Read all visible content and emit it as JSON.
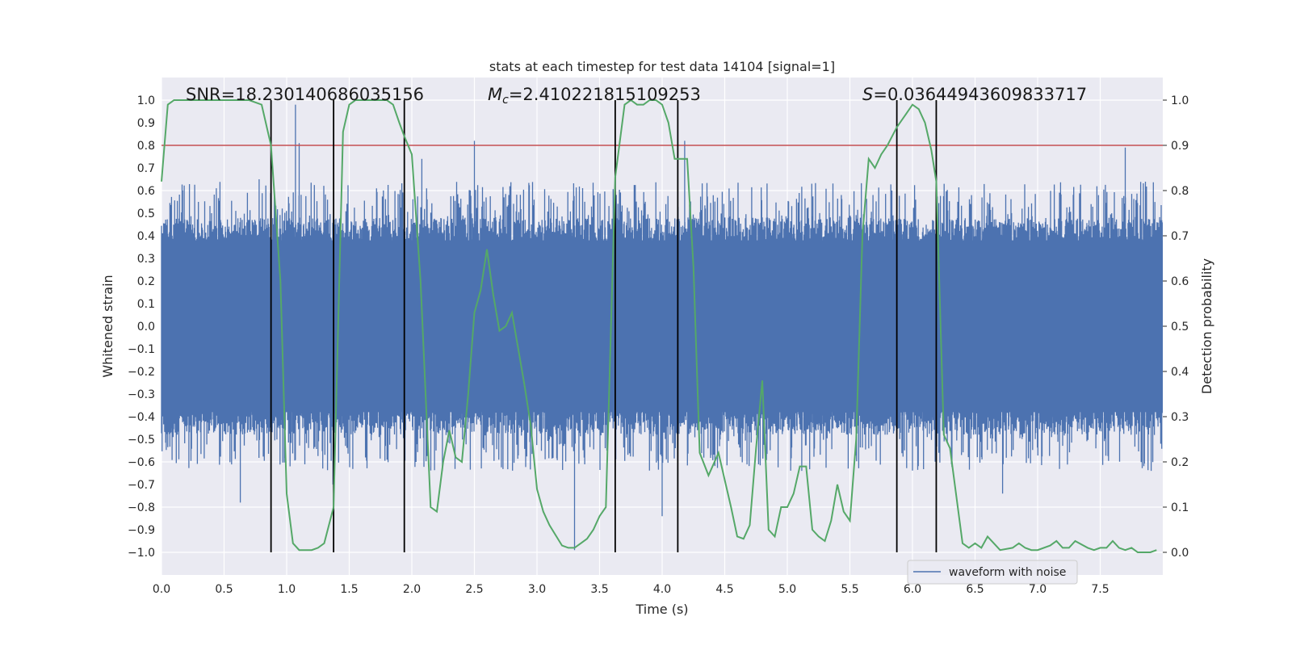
{
  "chart_data": {
    "type": "line",
    "title": "stats at each timestep for test data 14104 [signal=1]",
    "xlabel": "Time (s)",
    "ylabel_left": "Whitened strain",
    "ylabel_right": "Detection probability",
    "xlim": [
      0.0,
      8.0
    ],
    "ylim_left": [
      -1.1,
      1.1
    ],
    "ylim_right": [
      -0.05,
      1.05
    ],
    "x_ticks": [
      "0.0",
      "0.5",
      "1.0",
      "1.5",
      "2.0",
      "2.5",
      "3.0",
      "3.5",
      "4.0",
      "4.5",
      "5.0",
      "5.5",
      "6.0",
      "6.5",
      "7.0",
      "7.5"
    ],
    "y_ticks_left": [
      "1.0",
      "0.9",
      "0.8",
      "0.7",
      "0.6",
      "0.5",
      "0.4",
      "0.3",
      "0.2",
      "0.1",
      "0.0",
      "-0.1",
      "-0.2",
      "-0.3",
      "-0.4",
      "-0.5",
      "-0.6",
      "-0.7",
      "-0.8",
      "-0.9",
      "-1.0"
    ],
    "y_ticks_right": [
      "1.0",
      "0.9",
      "0.8",
      "0.7",
      "0.6",
      "0.5",
      "0.4",
      "0.3",
      "0.2",
      "0.1",
      "0.0"
    ],
    "grid": true,
    "annotations": {
      "snr_label": "SNR=18.230140686035156",
      "mc_symbol": "M",
      "mc_subscript": "c",
      "mc_value": "=2.410221815109253",
      "s_symbol": "S",
      "s_value": "=0.03644943609833717"
    },
    "legend": {
      "position": "bottom-right",
      "entries": [
        "waveform with noise"
      ]
    },
    "threshold_line": {
      "axis": "right",
      "value": 0.9,
      "color": "#c44e52"
    },
    "vertical_lines": [
      0.875,
      1.375,
      1.94,
      3.625,
      4.125,
      5.875,
      6.19
    ],
    "waveform": {
      "name": "waveform with noise",
      "color": "#4c72b0",
      "seed": 14104,
      "t_start": 0.0,
      "t_end": 8.0,
      "core_amplitude": 0.4,
      "spikes": [
        {
          "t": 1.07,
          "v": 0.98
        },
        {
          "t": 1.1,
          "v": 0.81
        },
        {
          "t": 2.5,
          "v": 0.82
        },
        {
          "t": 3.3,
          "v": -0.99
        },
        {
          "t": 4.18,
          "v": 0.82
        },
        {
          "t": 7.7,
          "v": 0.79
        },
        {
          "t": 4.0,
          "v": -0.84
        },
        {
          "t": 0.63,
          "v": -0.78
        },
        {
          "t": 6.72,
          "v": -0.74
        },
        {
          "t": 1.37,
          "v": -0.7
        },
        {
          "t": 0.78,
          "v": 0.65
        },
        {
          "t": 2.08,
          "v": 0.74
        }
      ]
    },
    "detection_probability": {
      "name": "detection probability",
      "color": "#55a868",
      "x": [
        0.0,
        0.05,
        0.1,
        0.2,
        0.3,
        0.4,
        0.5,
        0.6,
        0.7,
        0.8,
        0.875,
        0.95,
        1.0,
        1.05,
        1.1,
        1.15,
        1.2,
        1.25,
        1.3,
        1.375,
        1.45,
        1.5,
        1.55,
        1.6,
        1.7,
        1.8,
        1.85,
        1.9,
        1.94,
        2.0,
        2.07,
        2.15,
        2.2,
        2.25,
        2.3,
        2.35,
        2.4,
        2.45,
        2.5,
        2.55,
        2.6,
        2.65,
        2.7,
        2.75,
        2.8,
        2.85,
        2.9,
        2.95,
        3.0,
        3.05,
        3.1,
        3.2,
        3.25,
        3.3,
        3.35,
        3.4,
        3.45,
        3.5,
        3.55,
        3.625,
        3.7,
        3.75,
        3.8,
        3.85,
        3.9,
        3.95,
        4.0,
        4.05,
        4.1,
        4.125,
        4.2,
        4.25,
        4.3,
        4.37,
        4.45,
        4.5,
        4.55,
        4.6,
        4.65,
        4.7,
        4.75,
        4.8,
        4.85,
        4.9,
        4.95,
        5.0,
        5.05,
        5.1,
        5.15,
        5.2,
        5.25,
        5.3,
        5.35,
        5.4,
        5.45,
        5.5,
        5.55,
        5.6,
        5.65,
        5.7,
        5.75,
        5.8,
        5.875,
        5.95,
        6.0,
        6.05,
        6.1,
        6.15,
        6.19,
        6.25,
        6.3,
        6.4,
        6.45,
        6.5,
        6.55,
        6.6,
        6.7,
        6.8,
        6.85,
        6.9,
        6.95,
        7.0,
        7.1,
        7.15,
        7.2,
        7.25,
        7.3,
        7.4,
        7.45,
        7.5,
        7.55,
        7.6,
        7.65,
        7.7,
        7.75,
        7.8,
        7.9,
        7.95
      ],
      "y": [
        0.82,
        0.99,
        1.0,
        1.0,
        1.0,
        1.0,
        1.0,
        1.0,
        1.0,
        0.99,
        0.9,
        0.6,
        0.13,
        0.02,
        0.005,
        0.005,
        0.005,
        0.01,
        0.02,
        0.1,
        0.93,
        0.99,
        1.0,
        1.0,
        1.0,
        1.0,
        0.99,
        0.95,
        0.92,
        0.88,
        0.6,
        0.1,
        0.09,
        0.2,
        0.27,
        0.21,
        0.2,
        0.35,
        0.53,
        0.58,
        0.67,
        0.57,
        0.49,
        0.5,
        0.53,
        0.45,
        0.37,
        0.28,
        0.14,
        0.09,
        0.06,
        0.015,
        0.01,
        0.01,
        0.02,
        0.03,
        0.05,
        0.08,
        0.1,
        0.83,
        0.99,
        1.0,
        0.99,
        0.99,
        1.0,
        1.0,
        0.99,
        0.95,
        0.87,
        0.87,
        0.87,
        0.63,
        0.22,
        0.17,
        0.22,
        0.16,
        0.1,
        0.035,
        0.03,
        0.06,
        0.23,
        0.38,
        0.05,
        0.035,
        0.1,
        0.1,
        0.13,
        0.19,
        0.19,
        0.05,
        0.035,
        0.025,
        0.07,
        0.15,
        0.09,
        0.07,
        0.25,
        0.7,
        0.87,
        0.85,
        0.88,
        0.9,
        0.94,
        0.97,
        0.99,
        0.98,
        0.95,
        0.89,
        0.82,
        0.26,
        0.23,
        0.02,
        0.01,
        0.02,
        0.01,
        0.035,
        0.005,
        0.01,
        0.02,
        0.01,
        0.005,
        0.005,
        0.015,
        0.025,
        0.01,
        0.01,
        0.025,
        0.01,
        0.005,
        0.01,
        0.01,
        0.025,
        0.01,
        0.005,
        0.01,
        0.0,
        0.0,
        0.005
      ]
    }
  }
}
